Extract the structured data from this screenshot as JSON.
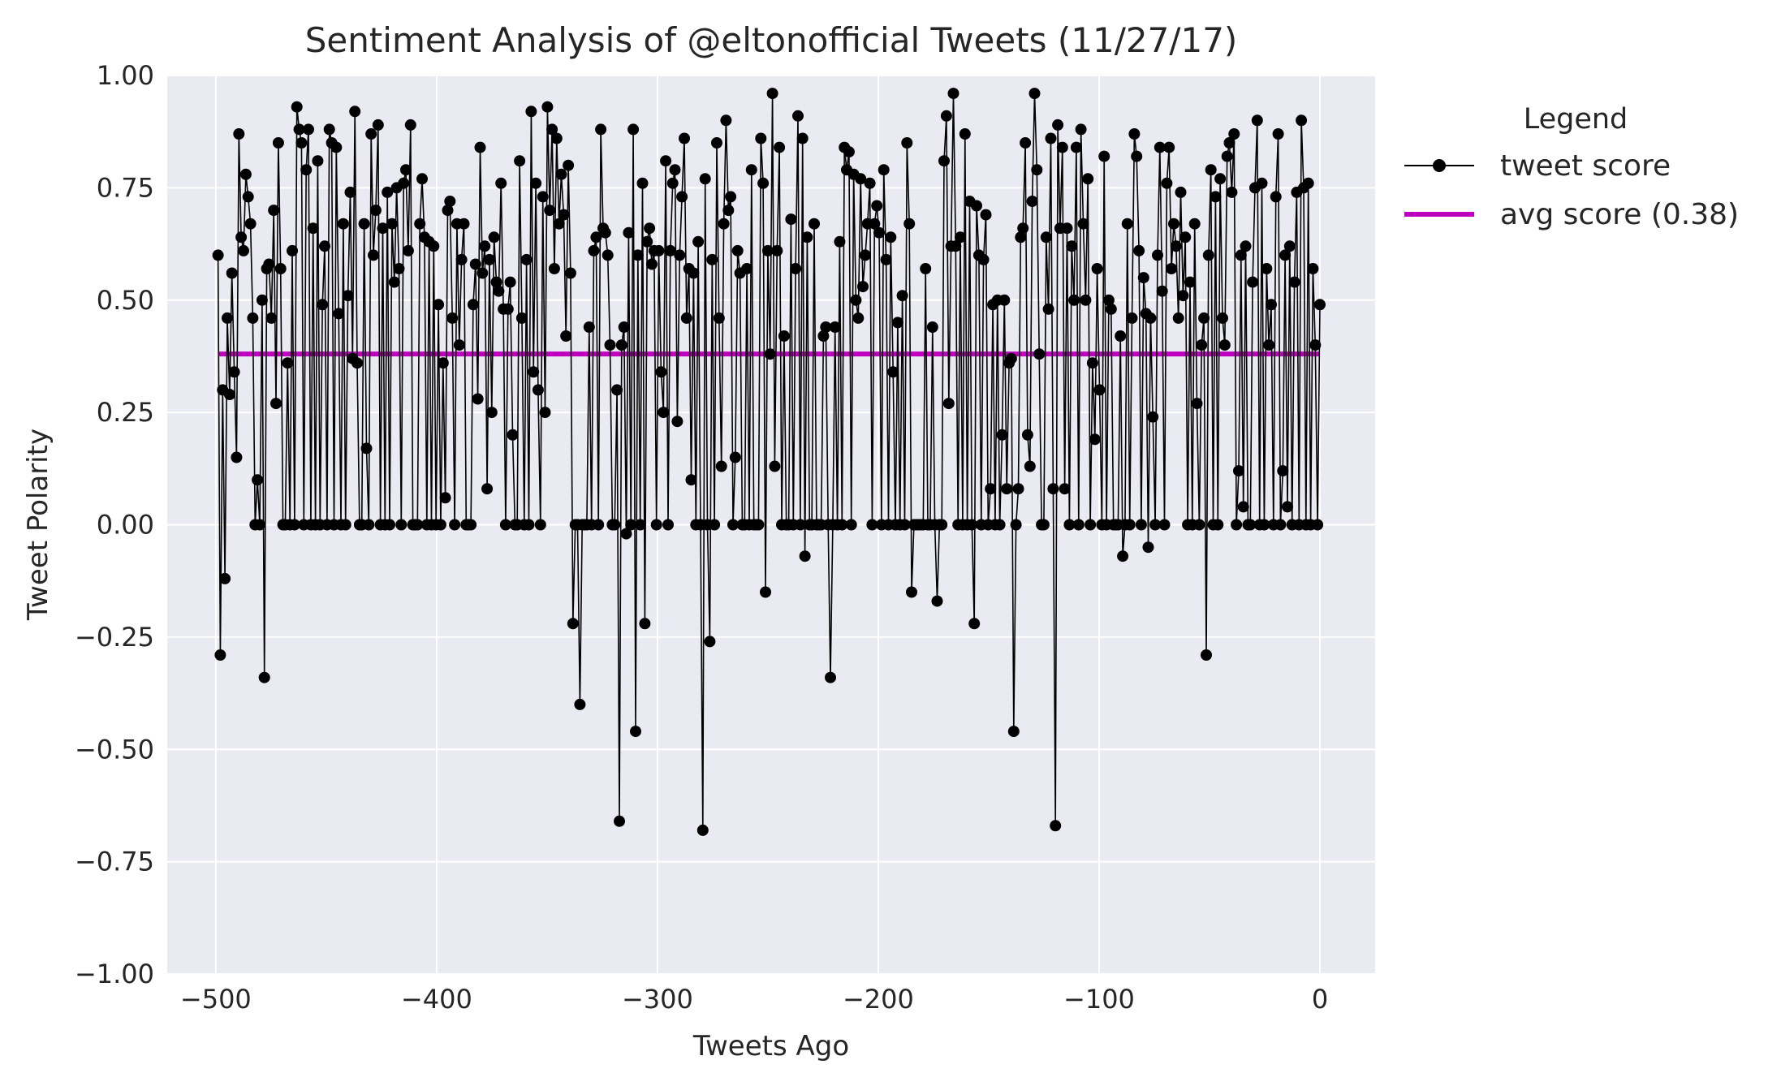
{
  "chart_data": {
    "type": "line",
    "title": "Sentiment Analysis of @eltonofficial Tweets (11/27/17)",
    "xlabel": "Tweets Ago",
    "ylabel": "Tweet Polarity",
    "xlim": [
      -522,
      25
    ],
    "ylim": [
      -1.0,
      1.0
    ],
    "xticks": [
      -500,
      -400,
      -300,
      -200,
      -100,
      0
    ],
    "xtick_labels": [
      "−500",
      "−400",
      "−300",
      "−200",
      "−100",
      "0"
    ],
    "yticks": [
      -1.0,
      -0.75,
      -0.5,
      -0.25,
      0.0,
      0.25,
      0.5,
      0.75,
      1.0
    ],
    "ytick_labels": [
      "−1.00",
      "−0.75",
      "−0.50",
      "−0.25",
      "0.00",
      "0.25",
      "0.50",
      "0.75",
      "1.00"
    ],
    "grid": true,
    "legend": {
      "title": "Legend",
      "placement": "outside-right",
      "entries": [
        "tweet score",
        "avg score (0.38)"
      ]
    },
    "series": [
      {
        "name": "tweet score",
        "color": "#000000",
        "marker": "circle",
        "x_range": [
          -499,
          0
        ],
        "y": [
          0.6,
          -0.29,
          0.3,
          -0.12,
          0.46,
          0.29,
          0.56,
          0.34,
          0.15,
          0.87,
          0.64,
          0.61,
          0.78,
          0.73,
          0.67,
          0.46,
          0.0,
          0.1,
          0.0,
          0.5,
          -0.34,
          0.57,
          0.58,
          0.46,
          0.7,
          0.27,
          0.85,
          0.57,
          0.0,
          0.0,
          0.36,
          0.0,
          0.61,
          0.0,
          0.93,
          0.88,
          0.85,
          0.0,
          0.79,
          0.88,
          0.0,
          0.66,
          0.0,
          0.81,
          0.0,
          0.49,
          0.62,
          0.0,
          0.88,
          0.85,
          0.0,
          0.84,
          0.47,
          0.0,
          0.67,
          0.0,
          0.51,
          0.74,
          0.37,
          0.92,
          0.36,
          0.0,
          0.0,
          0.67,
          0.17,
          0.0,
          0.87,
          0.6,
          0.7,
          0.89,
          0.0,
          0.66,
          0.0,
          0.74,
          0.0,
          0.67,
          0.54,
          0.75,
          0.57,
          0.0,
          0.76,
          0.79,
          0.61,
          0.89,
          0.0,
          0.0,
          0.0,
          0.67,
          0.77,
          0.64,
          0.0,
          0.63,
          0.0,
          0.62,
          0.0,
          0.49,
          0.0,
          0.36,
          0.06,
          0.7,
          0.72,
          0.46,
          0.0,
          0.67,
          0.4,
          0.59,
          0.67,
          0.0,
          0.0,
          0.0,
          0.49,
          0.58,
          0.28,
          0.84,
          0.56,
          0.62,
          0.08,
          0.59,
          0.25,
          0.64,
          0.54,
          0.52,
          0.76,
          0.48,
          0.0,
          0.48,
          0.54,
          0.2,
          0.0,
          0.0,
          0.81,
          0.46,
          0.0,
          0.59,
          0.0,
          0.92,
          0.34,
          0.76,
          0.3,
          0.0,
          0.73,
          0.25,
          0.93,
          0.7,
          0.88,
          0.57,
          0.86,
          0.67,
          0.78,
          0.69,
          0.42,
          0.8,
          0.56,
          -0.22,
          0.0,
          0.0,
          -0.4,
          0.0,
          0.0,
          0.0,
          0.44,
          0.0,
          0.61,
          0.64,
          0.0,
          0.88,
          0.66,
          0.65,
          0.6,
          0.4,
          0.0,
          0.0,
          0.3,
          -0.66,
          0.4,
          0.44,
          -0.02,
          0.65,
          0.0,
          0.88,
          -0.46,
          0.6,
          0.0,
          0.76,
          -0.22,
          0.63,
          0.66,
          0.58,
          0.61,
          0.0,
          0.61,
          0.34,
          0.25,
          0.81,
          0.0,
          0.61,
          0.76,
          0.79,
          0.23,
          0.6,
          0.73,
          0.86,
          0.46,
          0.57,
          0.1,
          0.56,
          0.0,
          0.63,
          0.0,
          -0.68,
          0.77,
          0.0,
          -0.26,
          0.59,
          0.0,
          0.85,
          0.46,
          0.13,
          0.67,
          0.9,
          0.7,
          0.73,
          0.0,
          0.15,
          0.61,
          0.56,
          0.0,
          0.0,
          0.57,
          0.0,
          0.79,
          0.0,
          0.0,
          0.0,
          0.86,
          0.76,
          -0.15,
          0.61,
          0.38,
          0.96,
          0.13,
          0.61,
          0.84,
          0.0,
          0.42,
          0.0,
          0.0,
          0.68,
          0.0,
          0.57,
          0.91,
          0.0,
          0.86,
          -0.07,
          0.64,
          0.0,
          0.0,
          0.67,
          0.0,
          0.0,
          0.0,
          0.42,
          0.44,
          0.0,
          -0.34,
          0.0,
          0.44,
          0.0,
          0.63,
          0.0,
          0.84,
          0.79,
          0.83,
          0.0,
          0.78,
          0.5,
          0.46,
          0.77,
          0.53,
          0.6,
          0.67,
          0.76,
          0.0,
          0.67,
          0.71,
          0.65,
          0.0,
          0.79,
          0.59,
          0.0,
          0.64,
          0.34,
          0.0,
          0.45,
          0.0,
          0.51,
          0.0,
          0.85,
          0.67,
          -0.15,
          0.0,
          0.0,
          0.0,
          0.0,
          0.0,
          0.57,
          0.0,
          0.0,
          0.44,
          0.0,
          -0.17,
          0.0,
          0.0,
          0.81,
          0.91,
          0.27,
          0.62,
          0.96,
          0.62,
          0.0,
          0.64,
          0.0,
          0.87,
          0.0,
          0.72,
          0.0,
          -0.22,
          0.71,
          0.6,
          0.0,
          0.59,
          0.69,
          0.0,
          0.08,
          0.49,
          0.0,
          0.5,
          0.0,
          0.2,
          0.5,
          0.08,
          0.36,
          0.37,
          -0.46,
          0.0,
          0.08,
          0.64,
          0.66,
          0.85,
          0.2,
          0.13,
          0.72,
          0.96,
          0.79,
          0.38,
          0.0,
          0.0,
          0.64,
          0.48,
          0.86,
          0.08,
          -0.67,
          0.89,
          0.66,
          0.84,
          0.08,
          0.66,
          0.0,
          0.62,
          0.5,
          0.84,
          0.0,
          0.88,
          0.67,
          0.5,
          0.77,
          0.0,
          0.36,
          0.19,
          0.57,
          0.3,
          0.0,
          0.82,
          0.0,
          0.5,
          0.48,
          0.0,
          0.0,
          0.0,
          0.42,
          -0.07,
          0.0,
          0.67,
          0.0,
          0.46,
          0.87,
          0.82,
          0.61,
          0.0,
          0.55,
          0.47,
          -0.05,
          0.46,
          0.24,
          0.0,
          0.6,
          0.84,
          0.52,
          0.0,
          0.76,
          0.84,
          0.57,
          0.67,
          0.62,
          0.46,
          0.74,
          0.51,
          0.64,
          0.0,
          0.54,
          0.0,
          0.67,
          0.27,
          0.0,
          0.4,
          0.46,
          -0.29,
          0.6,
          0.79,
          0.0,
          0.73,
          0.0,
          0.77,
          0.46,
          0.4,
          0.82,
          0.85,
          0.74,
          0.87,
          0.0,
          0.12,
          0.6,
          0.04,
          0.62,
          0.0,
          0.0,
          0.54,
          0.75,
          0.9,
          0.0,
          0.76,
          0.0,
          0.57,
          0.4,
          0.49,
          0.0,
          0.73,
          0.87,
          0.0,
          0.12,
          0.6,
          0.04,
          0.62,
          0.0,
          0.54,
          0.74,
          0.0,
          0.9,
          0.75,
          0.0,
          0.76,
          0.0,
          0.57,
          0.4,
          0.0,
          0.49
        ]
      },
      {
        "name": "avg score (0.38)",
        "color": "#bf00bf",
        "x": [
          -499,
          0
        ],
        "y": [
          0.38,
          0.38
        ]
      }
    ]
  }
}
